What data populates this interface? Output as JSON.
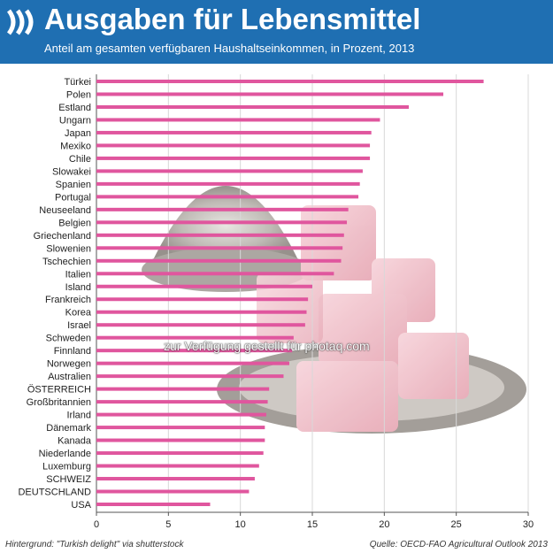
{
  "header": {
    "title": "Ausgaben für Lebensmittel",
    "subtitle": "Anteil am gesamten verfügbaren Haushaltseinkommen, in Prozent, 2013"
  },
  "footer": {
    "left": "Hintergrund: \"Turkish delight\" via shutterstock",
    "right": "Quelle: OECD-FAO Agricultural Outlook 2013"
  },
  "watermark": "zur Verfügung gestellt für photaq.com",
  "colors": {
    "header": "#1f6fb2",
    "bar": "#e0569e",
    "axis": "#333333"
  },
  "chart_data": {
    "type": "bar",
    "orientation": "horizontal",
    "categories": [
      "Türkei",
      "Polen",
      "Estland",
      "Ungarn",
      "Japan",
      "Mexiko",
      "Chile",
      "Slowakei",
      "Spanien",
      "Portugal",
      "Neuseeland",
      "Belgien",
      "Griechenland",
      "Slowenien",
      "Tschechien",
      "Italien",
      "Island",
      "Frankreich",
      "Korea",
      "Israel",
      "Schweden",
      "Finnland",
      "Norwegen",
      "Australien",
      "ÖSTERREICH",
      "Großbritannien",
      "Irland",
      "Dänemark",
      "Kanada",
      "Niederlande",
      "Luxemburg",
      "SCHWEIZ",
      "DEUTSCHLAND",
      "USA"
    ],
    "values": [
      26.9,
      24.1,
      21.7,
      19.7,
      19.1,
      19.0,
      19.0,
      18.5,
      18.3,
      18.2,
      17.5,
      17.4,
      17.2,
      17.1,
      17.0,
      16.5,
      15.0,
      14.7,
      14.6,
      14.5,
      13.7,
      13.6,
      13.4,
      13.0,
      12.0,
      11.9,
      11.8,
      11.7,
      11.7,
      11.6,
      11.3,
      11.0,
      10.6,
      7.9
    ],
    "xlim": [
      0,
      30
    ],
    "xticks": [
      "0",
      "5",
      "10",
      "15",
      "20",
      "25",
      "30"
    ],
    "grid": true
  }
}
